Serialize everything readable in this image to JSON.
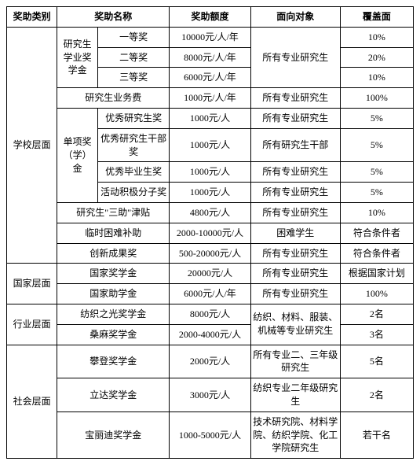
{
  "headers": {
    "category": "奖助类别",
    "name": "奖助名称",
    "amount": "奖助额度",
    "target": "面向对象",
    "coverage": "覆盖面"
  },
  "categories": {
    "school": "学校层面",
    "nation": "国家层面",
    "industry": "行业层面",
    "social": "社会层面"
  },
  "groups": {
    "academic": "研究生学业奖学金",
    "special": "单项奖（学）金"
  },
  "rows": {
    "r1": {
      "name": "一等奖",
      "amount": "10000元/人/年",
      "target": "所有专业研究生",
      "coverage": "10%"
    },
    "r2": {
      "name": "二等奖",
      "amount": "8000元/人/年",
      "coverage": "20%"
    },
    "r3": {
      "name": "三等奖",
      "amount": "6000元/人/年",
      "coverage": "10%"
    },
    "r4": {
      "name": "研究生业务费",
      "amount": "1000元/人/年",
      "target": "所有专业研究生",
      "coverage": "100%"
    },
    "r5": {
      "name": "优秀研究生奖",
      "amount": "1000元/人",
      "target": "所有专业研究生",
      "coverage": "5%"
    },
    "r6": {
      "name": "优秀研究生干部奖",
      "amount": "1000元/人",
      "target": "所有研究生干部",
      "coverage": "5%"
    },
    "r7": {
      "name": "优秀毕业生奖",
      "amount": "1000元/人",
      "target": "所有专业研究生",
      "coverage": "5%"
    },
    "r8": {
      "name": "活动积极分子奖",
      "amount": "1000元/人",
      "target": "所有专业研究生",
      "coverage": "5%"
    },
    "r9": {
      "name": "研究生\"三助\"津贴",
      "amount": "4800元/人",
      "target": "所有专业研究生",
      "coverage": "10%"
    },
    "r10": {
      "name": "临时困难补助",
      "amount": "2000-10000元/人",
      "target": "困难学生",
      "coverage": "符合条件者"
    },
    "r11": {
      "name": "创新成果奖",
      "amount": "500-20000元/人",
      "target": "所有专业研究生",
      "coverage": "符合条件者"
    },
    "r12": {
      "name": "国家奖学金",
      "amount": "20000元/人",
      "target": "所有专业研究生",
      "coverage": "根据国家计划"
    },
    "r13": {
      "name": "国家助学金",
      "amount": "6000元/人/年",
      "target": "所有专业研究生",
      "coverage": "100%"
    },
    "r14": {
      "name": "纺织之光奖学金",
      "amount": "8000元/人",
      "target": "纺织、材料、服装、机械等专业研究生",
      "coverage": "2名"
    },
    "r15": {
      "name": "桑麻奖学金",
      "amount": "2000-4000元/人",
      "coverage": "3名"
    },
    "r16": {
      "name": "攀登奖学金",
      "amount": "2000元/人",
      "target": "所有专业二、三年级研究生",
      "coverage": "5名"
    },
    "r17": {
      "name": "立达奖学金",
      "amount": "3000元/人",
      "target": "纺织专业二年级研究生",
      "coverage": "2名"
    },
    "r18": {
      "name": "宝丽迪奖学金",
      "amount": "1000-5000元/人",
      "target": "技术研究院、材料学院、纺织学院、化工学院研究生",
      "coverage": "若干名"
    }
  },
  "style": {
    "border_color": "#000000",
    "bg_color": "#ffffff",
    "font_size": 12
  }
}
